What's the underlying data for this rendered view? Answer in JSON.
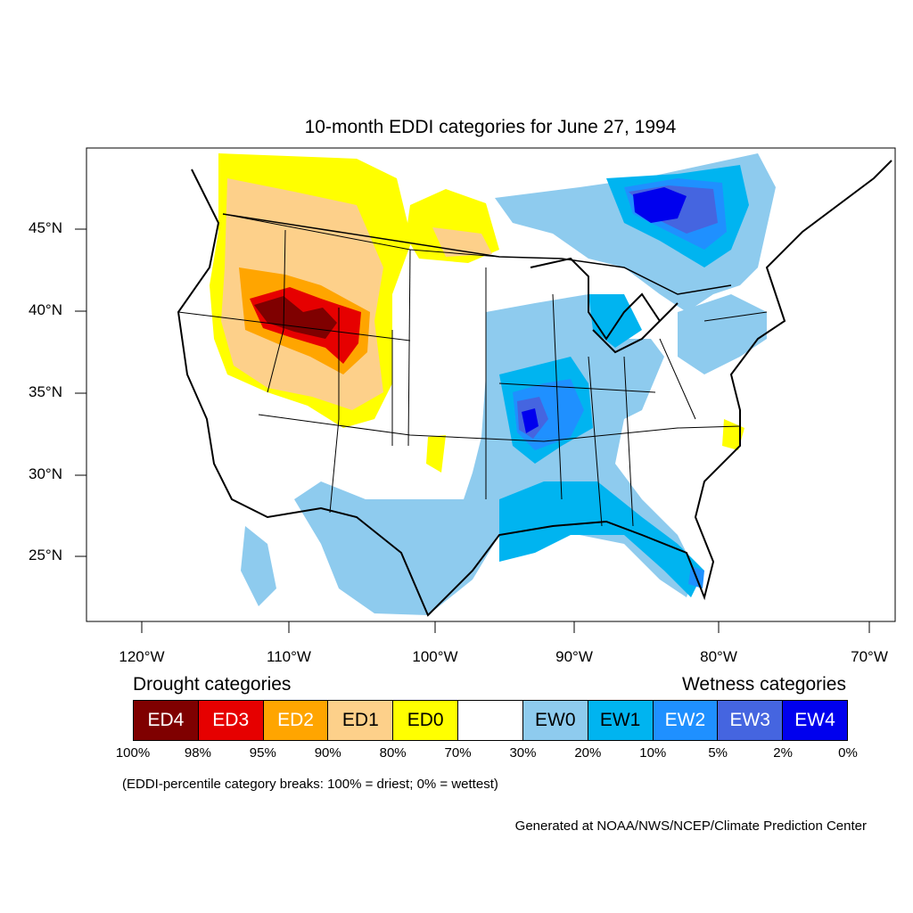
{
  "title": "10-month EDDI categories for June 27, 1994",
  "lat_labels": [
    "45°N",
    "40°N",
    "35°N",
    "30°N",
    "25°N"
  ],
  "lon_labels": [
    "120°W",
    "110°W",
    "100°W",
    "90°W",
    "80°W",
    "70°W"
  ],
  "legend": {
    "drought_heading": "Drought categories",
    "wetness_heading": "Wetness categories",
    "categories": [
      {
        "label": "ED4",
        "color": "#7f0000",
        "text_color": "#ffffff"
      },
      {
        "label": "ED3",
        "color": "#e60000",
        "text_color": "#ffffff"
      },
      {
        "label": "ED2",
        "color": "#ffa500",
        "text_color": "#ffffff"
      },
      {
        "label": "ED1",
        "color": "#fdd08a",
        "text_color": "#000000"
      },
      {
        "label": "ED0",
        "color": "#ffff00",
        "text_color": "#000000"
      },
      {
        "label": "",
        "color": "#ffffff",
        "text_color": "#000000"
      },
      {
        "label": "EW0",
        "color": "#8ecbee",
        "text_color": "#000000"
      },
      {
        "label": "EW1",
        "color": "#00b4f0",
        "text_color": "#000000"
      },
      {
        "label": "EW2",
        "color": "#1f90ff",
        "text_color": "#ffffff"
      },
      {
        "label": "EW3",
        "color": "#4565e0",
        "text_color": "#ffffff"
      },
      {
        "label": "EW4",
        "color": "#0000ee",
        "text_color": "#ffffff"
      }
    ],
    "breaks": [
      "100%",
      "98%",
      "95%",
      "90%",
      "80%",
      "70%",
      "30%",
      "20%",
      "10%",
      "5%",
      "2%",
      "0%"
    ]
  },
  "note": "(EDDI-percentile category breaks: 100% = driest; 0% = wettest)",
  "credit": "Generated at NOAA/NWS/NCEP/Climate Prediction Center"
}
